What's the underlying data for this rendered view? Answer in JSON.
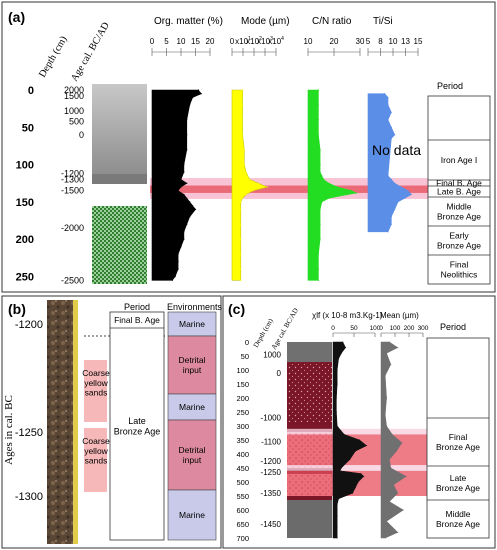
{
  "figure": {
    "panel_a_letter": "(a)",
    "panel_b_letter": "(b)",
    "panel_c_letter": "(c)"
  },
  "colors": {
    "background": "#ffffff",
    "pink_band": "#f39bb8",
    "pink_band_light": "#f9cfe0",
    "red_band": "#e8505f",
    "yellow": "#ffff00",
    "green": "#22dd22",
    "blue": "#5b8ee6",
    "black": "#000000",
    "grey_bar": "#bdbdbd",
    "check_green": "#2f7f2f",
    "marine": "#c9c9ea",
    "detrital": "#dd8aa0",
    "coarse_sand": "#f6b8b8",
    "sediment_red": "#8b1a2a",
    "mean_grey": "#707070"
  },
  "chart_data": [
    {
      "panel": "a",
      "type": "line",
      "y_axis": {
        "label": "Depth (cm)",
        "ticks": [
          "0",
          "50",
          "100",
          "150",
          "200",
          "250"
        ],
        "range": [
          0,
          260
        ],
        "inverted": true
      },
      "age_axis": {
        "label": "Age  cal. BC/AD",
        "ticks": [
          "2000",
          "1500",
          "1000",
          "500",
          "0",
          "-1200",
          "-1300",
          "-1500",
          "-2000",
          "-2500"
        ]
      },
      "tracks": [
        {
          "name": "Org. matter (%)",
          "ticks": [
            "0",
            "5",
            "10",
            "15",
            "20"
          ],
          "range": [
            0,
            20
          ],
          "depth": [
            0,
            5,
            10,
            20,
            40,
            60,
            80,
            100,
            110,
            120,
            125,
            130,
            135,
            140,
            145,
            150,
            155,
            160,
            170,
            180,
            190,
            200,
            210,
            220,
            230,
            240,
            250,
            255
          ],
          "values": [
            16,
            17,
            14,
            13,
            12,
            12,
            12,
            11,
            11,
            10,
            12,
            10,
            9,
            11,
            12,
            13,
            14,
            15,
            13,
            12,
            11,
            11,
            10,
            9,
            9,
            9,
            8,
            7
          ]
        },
        {
          "name": "Mode (µm)",
          "ticks": [
            "0",
            "x10",
            "x10",
            "x10",
            "x10"
          ],
          "tick_exponents": [
            "",
            "1",
            "2",
            "3",
            "4"
          ],
          "depth": [
            0,
            20,
            40,
            60,
            80,
            100,
            110,
            120,
            125,
            130,
            135,
            140,
            145,
            150,
            160,
            180,
            200,
            220,
            240,
            255
          ],
          "values": [
            1.6,
            1.6,
            1.6,
            1.6,
            1.7,
            1.7,
            1.8,
            2.0,
            2.5,
            3.0,
            2.2,
            1.8,
            1.6,
            1.5,
            1.5,
            1.5,
            1.5,
            1.5,
            1.5,
            1.5
          ]
        },
        {
          "name": "C/N ratio",
          "ticks": [
            "10",
            "20",
            "30"
          ],
          "range": [
            5,
            35
          ],
          "depth": [
            0,
            20,
            40,
            60,
            80,
            100,
            110,
            115,
            120,
            125,
            130,
            135,
            138,
            140,
            145,
            150,
            160,
            180,
            200,
            220,
            240,
            255
          ],
          "values": [
            11,
            11,
            11,
            11,
            12,
            12,
            12,
            13,
            14,
            17,
            22,
            30,
            33,
            28,
            17,
            13,
            12,
            12,
            12,
            11,
            11,
            11
          ]
        },
        {
          "name": "Ti/Si",
          "ticks": [
            "5",
            "8",
            "10",
            "13",
            "15"
          ],
          "range": [
            2,
            17
          ],
          "depth": [
            5,
            10,
            20,
            30,
            40,
            50,
            60,
            65,
            115,
            120,
            125,
            130,
            135,
            140,
            145,
            150,
            160,
            170,
            180,
            190
          ],
          "values": [
            7,
            8,
            8,
            9,
            8,
            9,
            10,
            9,
            8,
            9,
            10,
            12,
            14,
            15,
            13,
            11,
            10,
            9,
            9,
            8
          ]
        }
      ],
      "gap_label": "No data",
      "bands": [
        {
          "from": 118,
          "to": 128,
          "color": "pink"
        },
        {
          "from": 128,
          "to": 138,
          "color": "red"
        },
        {
          "from": 138,
          "to": 146,
          "color": "pink"
        }
      ],
      "periods": {
        "header": "Period",
        "labels": [
          "Iron Age I",
          "Final B. Age",
          "Late B. Age",
          "Middle\nBronze Age",
          "Early\nBronze Age",
          "Final\nNeolithics"
        ]
      }
    },
    {
      "panel": "b",
      "type": "table",
      "y_axis": {
        "label": "Ages in cal. BC",
        "ticks": [
          "-1200",
          "-1250",
          "-1300"
        ]
      },
      "sand_labels": [
        "Coarse\nyellow\nsands",
        "Coarse\nyellow\nsands"
      ],
      "period_header": "Period",
      "periods": [
        "Final B. Age",
        "Late\nBronze Age"
      ],
      "environment_header": "Environments",
      "environments": [
        "Marine",
        "Detrital\ninput",
        "Marine",
        "Detrital\ninput",
        "Marine"
      ]
    },
    {
      "panel": "c",
      "type": "line",
      "y_axis": {
        "label": "Depth (cm)",
        "ticks": [
          "0",
          "50",
          "100",
          "150",
          "200",
          "250",
          "300",
          "350",
          "400",
          "450",
          "500",
          "550",
          "600",
          "650",
          "700"
        ],
        "range": [
          0,
          700
        ],
        "inverted": true
      },
      "age_axis": {
        "label": "Age cal. BC/AD",
        "ticks": [
          "1000",
          "0",
          "-1000",
          "-1100",
          "-1200",
          "-1250",
          "-1350",
          "-1450"
        ]
      },
      "tracks": [
        {
          "name": "χlf (x 10-8 m3.Kg-1)",
          "ticks": [
            "0",
            "50",
            "100"
          ],
          "range": [
            0,
            150
          ],
          "depth": [
            0,
            20,
            40,
            60,
            100,
            150,
            200,
            250,
            300,
            330,
            350,
            370,
            390,
            420,
            450,
            460,
            470,
            480,
            500,
            520,
            540,
            560,
            580,
            620,
            660,
            700
          ],
          "values": [
            35,
            45,
            30,
            20,
            15,
            15,
            12,
            12,
            15,
            40,
            95,
            120,
            80,
            60,
            30,
            25,
            100,
            110,
            90,
            80,
            70,
            20,
            15,
            15,
            15,
            15
          ]
        },
        {
          "name": "Mean (µm)",
          "ticks": [
            "0",
            "100",
            "200",
            "300"
          ],
          "range": [
            0,
            300
          ],
          "depth": [
            0,
            20,
            40,
            80,
            120,
            200,
            260,
            300,
            330,
            360,
            390,
            420,
            450,
            480,
            510,
            540,
            570,
            600,
            640,
            680,
            700
          ],
          "values": [
            60,
            120,
            40,
            70,
            30,
            40,
            30,
            40,
            80,
            150,
            110,
            60,
            70,
            180,
            90,
            120,
            60,
            160,
            40,
            120,
            30
          ]
        }
      ],
      "bands": [
        {
          "from": 310,
          "to": 330,
          "color": "pink"
        },
        {
          "from": 330,
          "to": 440,
          "color": "red"
        },
        {
          "from": 440,
          "to": 460,
          "color": "pink"
        },
        {
          "from": 460,
          "to": 550,
          "color": "red"
        }
      ],
      "periods": {
        "header": "Period",
        "labels": [
          "Final\nBronze Age",
          "Late\nBronze Age",
          "Middle\nBronze Age"
        ]
      }
    }
  ]
}
